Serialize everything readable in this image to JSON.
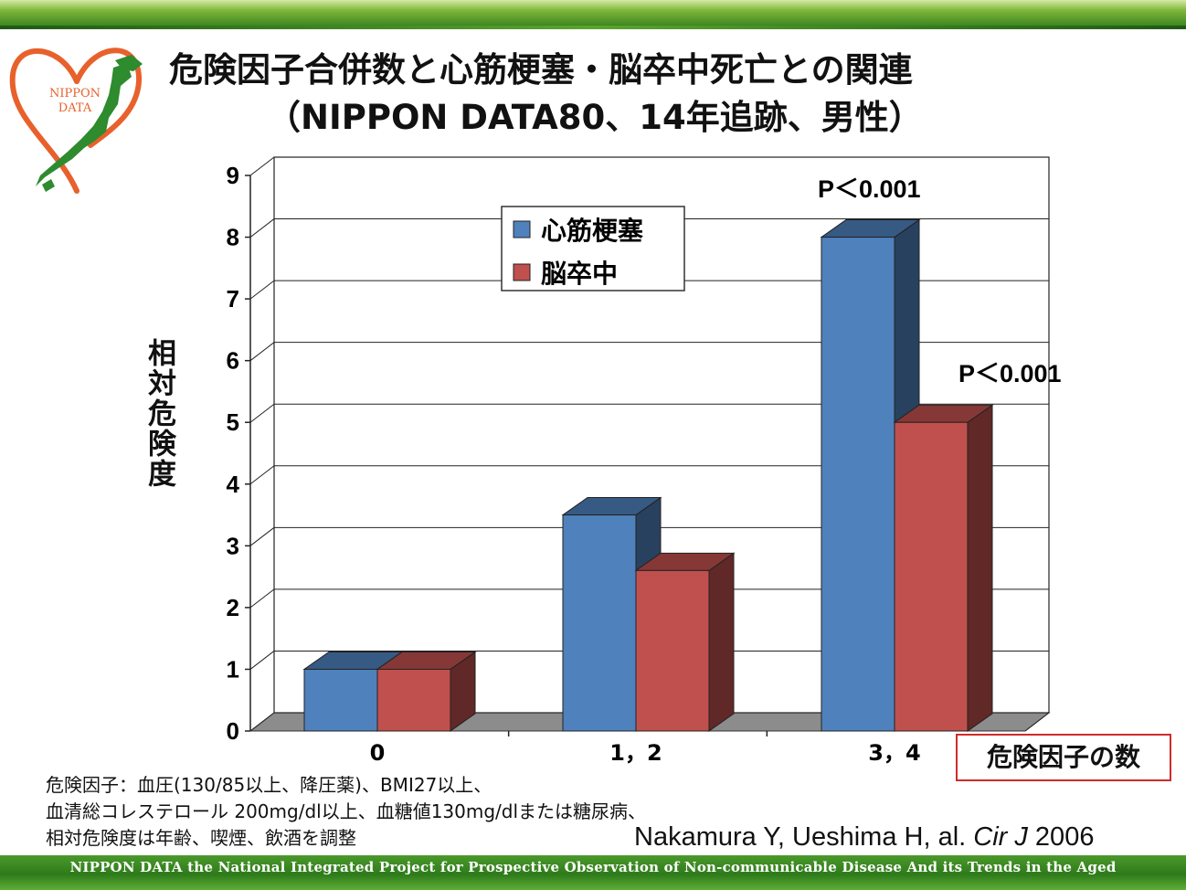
{
  "title_line1": "危険因子合併数と心筋梗塞・脳卒中死亡との関連",
  "title_line2": "（NIPPON DATA80、14年追跡、男性）",
  "logo_text": [
    "NIPPON",
    "DATA"
  ],
  "notes": [
    "危険因子：血圧(130/85以上、降圧薬)、BMI27以上、",
    "血清総コレステロール 200mg/dl以上、血糖値130mg/dlまたは糖尿病、",
    "相対危険度は年齢、喫煙、飲酒を調整"
  ],
  "citation": {
    "authors": "Nakamura  Y, Ueshima H, al. ",
    "journal": "Cir J",
    "year": "  2006"
  },
  "footer": "NIPPON DATA   the National Integrated Project  for Prospective Observation of Non-communicable Disease And its Trends in the Aged",
  "colors": {
    "series1": "#4f81bd",
    "series2": "#c0504d",
    "accent_green": "#2f7a1c",
    "logo_orange": "#e8612c"
  },
  "chart_data": {
    "type": "bar",
    "categories": [
      "0",
      "1，2",
      "3，4"
    ],
    "series": [
      {
        "name": "心筋梗塞",
        "values": [
          1.0,
          3.5,
          8.0
        ]
      },
      {
        "name": "脳卒中",
        "values": [
          1.0,
          2.6,
          5.0
        ]
      }
    ],
    "ylabel": "相対危険度",
    "xlabel": "危険因子の数",
    "ylim": [
      0,
      9
    ],
    "yticks": [
      "0",
      "1",
      "2",
      "3",
      "4",
      "5",
      "6",
      "7",
      "8",
      "9"
    ],
    "grid": true,
    "legend": "top-center",
    "annotations": [
      "P＜0.001",
      "P＜0.001"
    ]
  }
}
